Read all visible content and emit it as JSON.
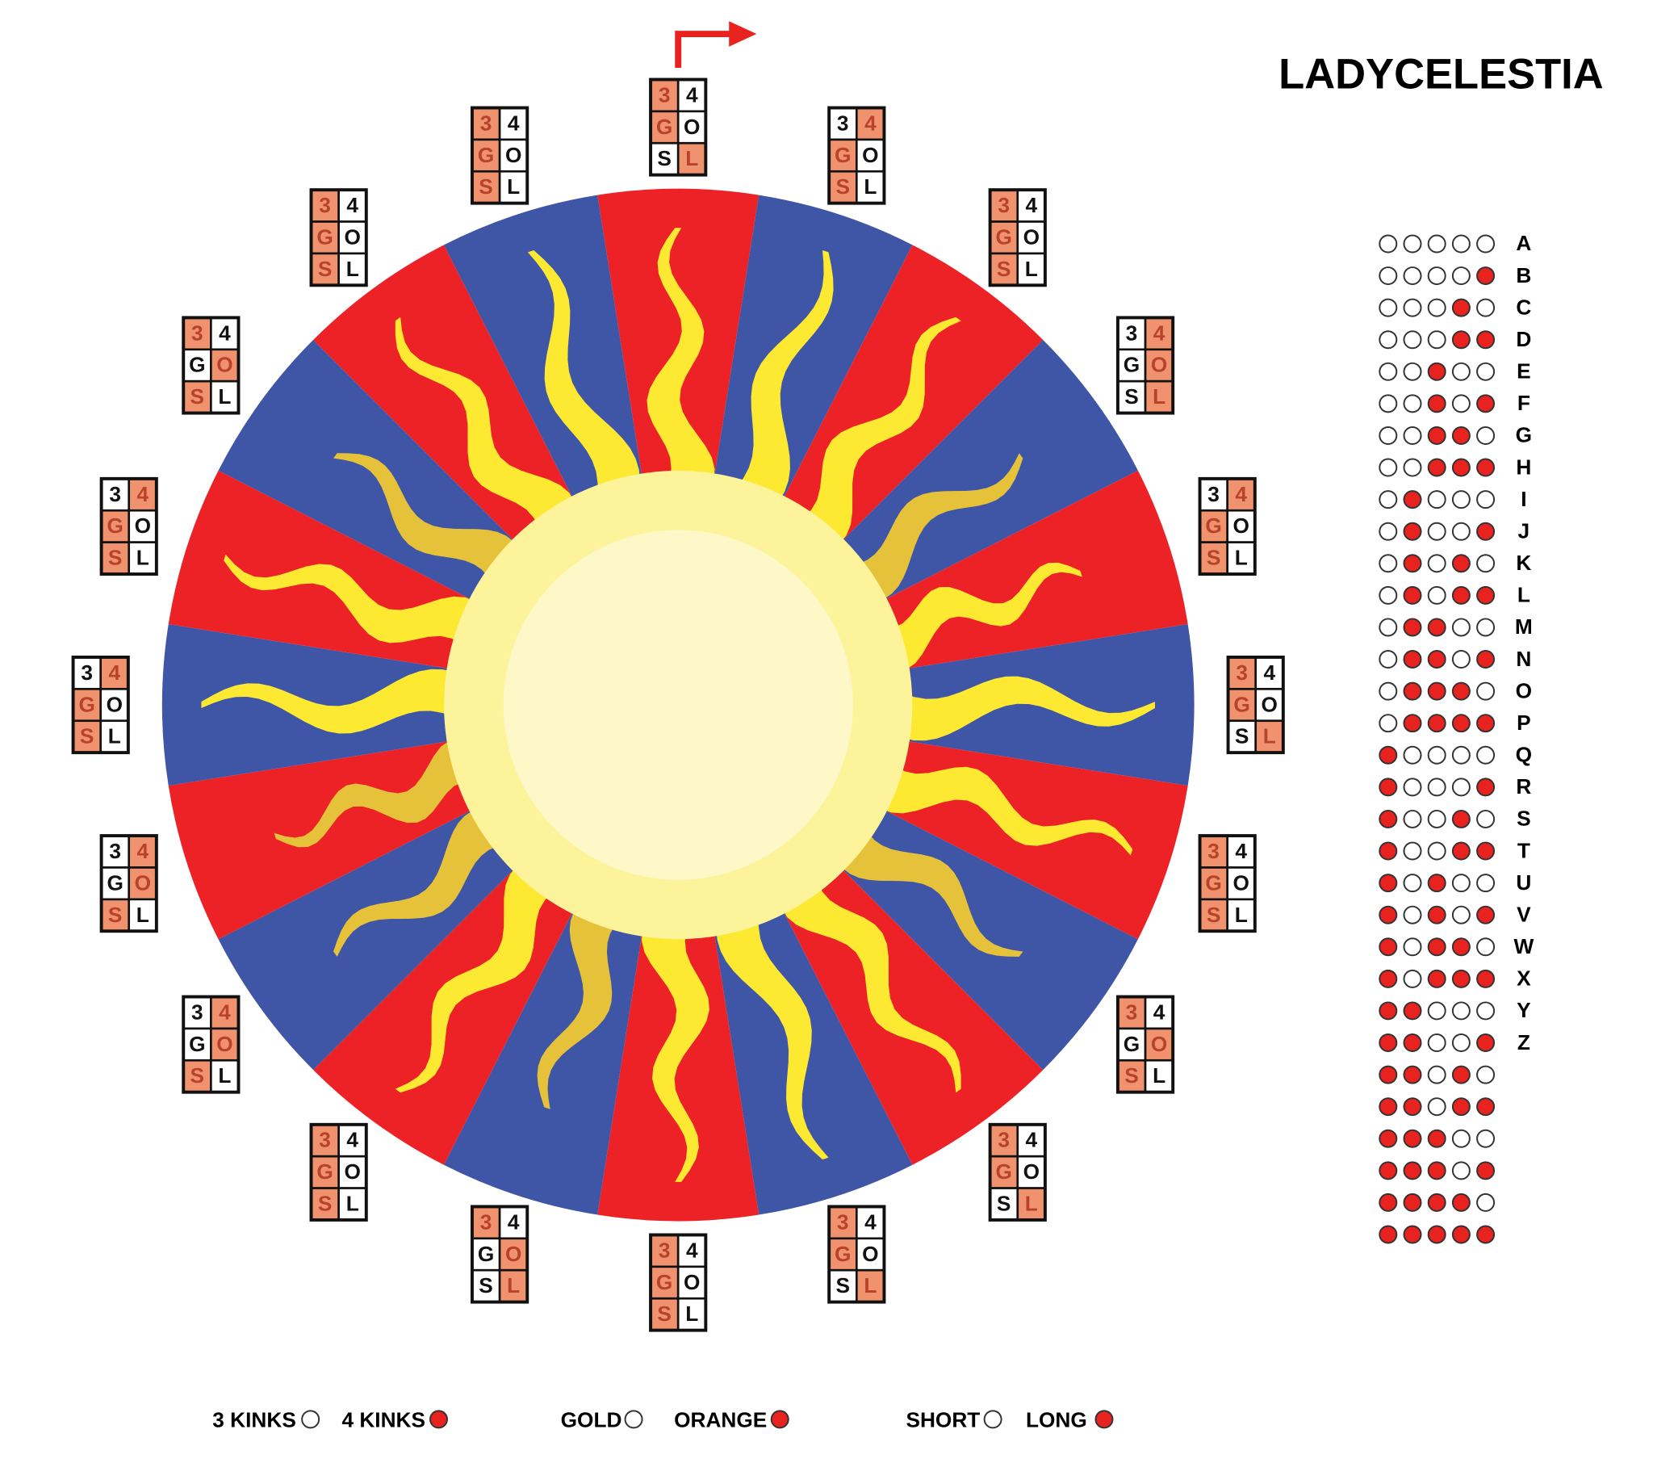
{
  "title": "LADYCELESTIA",
  "cell_labels": [
    [
      "3",
      "4"
    ],
    [
      "G",
      "O"
    ],
    [
      "S",
      "L"
    ]
  ],
  "clues": [
    [
      0,
      0,
      1
    ],
    [
      1,
      0,
      0
    ],
    [
      0,
      0,
      0
    ],
    [
      1,
      1,
      1
    ],
    [
      1,
      0,
      0
    ],
    [
      0,
      0,
      1
    ],
    [
      0,
      0,
      0
    ],
    [
      0,
      1,
      0
    ],
    [
      0,
      0,
      1
    ],
    [
      0,
      0,
      1
    ],
    [
      0,
      0,
      0
    ],
    [
      0,
      1,
      1
    ],
    [
      0,
      0,
      0
    ],
    [
      1,
      1,
      0
    ],
    [
      1,
      1,
      0
    ],
    [
      1,
      0,
      0
    ],
    [
      1,
      0,
      0
    ],
    [
      0,
      1,
      0
    ],
    [
      0,
      0,
      0
    ],
    [
      0,
      0,
      0
    ]
  ],
  "code_table": {
    "letters": [
      "A",
      "B",
      "C",
      "D",
      "E",
      "F",
      "G",
      "H",
      "I",
      "J",
      "K",
      "L",
      "M",
      "N",
      "O",
      "P",
      "Q",
      "R",
      "S",
      "T",
      "U",
      "V",
      "W",
      "X",
      "Y",
      "Z"
    ],
    "rows": [
      [
        0,
        0,
        0,
        0,
        0
      ],
      [
        0,
        0,
        0,
        0,
        1
      ],
      [
        0,
        0,
        0,
        1,
        0
      ],
      [
        0,
        0,
        0,
        1,
        1
      ],
      [
        0,
        0,
        1,
        0,
        0
      ],
      [
        0,
        0,
        1,
        0,
        1
      ],
      [
        0,
        0,
        1,
        1,
        0
      ],
      [
        0,
        0,
        1,
        1,
        1
      ],
      [
        0,
        1,
        0,
        0,
        0
      ],
      [
        0,
        1,
        0,
        0,
        1
      ],
      [
        0,
        1,
        0,
        1,
        0
      ],
      [
        0,
        1,
        0,
        1,
        1
      ],
      [
        0,
        1,
        1,
        0,
        0
      ],
      [
        0,
        1,
        1,
        0,
        1
      ],
      [
        0,
        1,
        1,
        1,
        0
      ],
      [
        0,
        1,
        1,
        1,
        1
      ],
      [
        1,
        0,
        0,
        0,
        0
      ],
      [
        1,
        0,
        0,
        0,
        1
      ],
      [
        1,
        0,
        0,
        1,
        0
      ],
      [
        1,
        0,
        0,
        1,
        1
      ],
      [
        1,
        0,
        1,
        0,
        0
      ],
      [
        1,
        0,
        1,
        0,
        1
      ],
      [
        1,
        0,
        1,
        1,
        0
      ],
      [
        1,
        0,
        1,
        1,
        1
      ],
      [
        1,
        1,
        0,
        0,
        0
      ],
      [
        1,
        1,
        0,
        0,
        1
      ],
      [
        1,
        1,
        0,
        1,
        0
      ],
      [
        1,
        1,
        0,
        1,
        1
      ],
      [
        1,
        1,
        1,
        0,
        0
      ],
      [
        1,
        1,
        1,
        0,
        1
      ],
      [
        1,
        1,
        1,
        1,
        0
      ],
      [
        1,
        1,
        1,
        1,
        1
      ]
    ]
  },
  "legend": [
    {
      "label": "3 KINKS",
      "filled": false
    },
    {
      "label": "4 KINKS",
      "filled": true
    },
    {
      "label": "GOLD",
      "filled": false
    },
    {
      "label": "ORANGE",
      "filled": true
    },
    {
      "label": "SHORT",
      "filled": false
    },
    {
      "label": "LONG",
      "filled": true
    }
  ]
}
